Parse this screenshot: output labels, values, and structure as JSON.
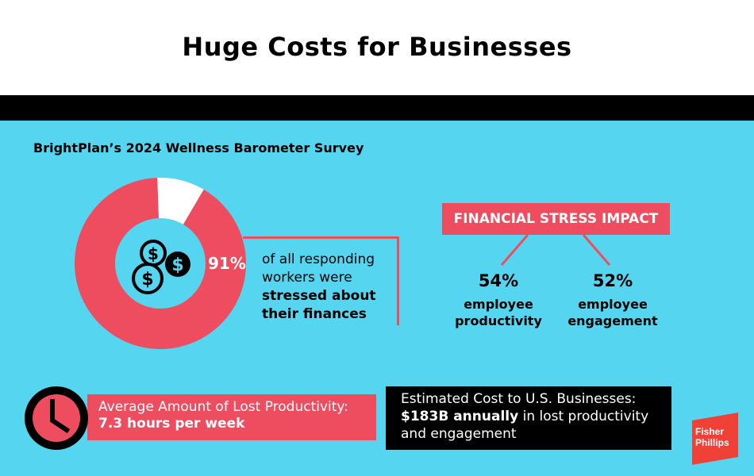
{
  "header": {
    "title": "Huge Costs for Businesses"
  },
  "survey": {
    "title": "BrightPlan’s 2024 Wellness Barometer Survey",
    "stressed_percent": "91%",
    "stressed_fraction": 0.91,
    "text_line1": "of all responding",
    "text_line2": "workers were",
    "text_bold1": "stressed about",
    "text_bold2": "their finances"
  },
  "impact": {
    "heading": "FINANCIAL STRESS IMPACT",
    "items": [
      {
        "value": "54%",
        "line1": "employee",
        "line2": "productivity"
      },
      {
        "value": "52%",
        "line1": "employee",
        "line2": "engagement"
      }
    ]
  },
  "productivity": {
    "label": "Average Amount of Lost Productivity:",
    "value": "7.3 hours per week"
  },
  "cost": {
    "label": "Estimated Cost to U.S. Businesses:",
    "bold": "$183B annually",
    "rest1": " in lost productivity",
    "rest2": "and engagement"
  },
  "logo": {
    "line1": "Fisher",
    "line2": "Phillips"
  },
  "colors": {
    "panel": "#55d5f0",
    "accent": "#ee4d5f",
    "dark": "#000000"
  },
  "icons": {
    "coins": "dollar-coins-icon",
    "clock": "clock-icon"
  }
}
